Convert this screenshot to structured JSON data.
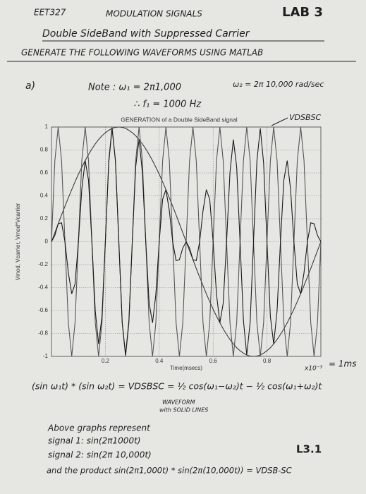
{
  "header": {
    "course": "EET327",
    "topic": "MODULATION SIGNALS",
    "lab": "LAB 3",
    "subtitle": "Double SideBand with Suppressed Carrier",
    "instruction": "GENERATE THE FOLLOWING WAVEFORMS USING MATLAB"
  },
  "notes": {
    "part": "a)",
    "omega1": "Note : ω₁ = 2π1,000",
    "f1": "∴ f₁ = 1000 Hz",
    "omega2": "ω₂ = 2π 10,000 rad/sec",
    "vlabel": "VDSBSC",
    "xscale": "x10⁻³",
    "ms": "= 1ms",
    "equation": "(sin ω₁t) * (sin ω₂t) = VDSBSC = ½ cos(ω₁−ω₂)t − ½ cos(ω₁+ω₂)t",
    "waveform1": "WAVEFORM",
    "waveform2": "with SOLID LINES",
    "above": "Above graphs represent",
    "signal1": "signal 1: sin(2π1000t)",
    "signal2": "signal 2: sin(2π 10,000t)",
    "product": "and the product sin(2π1,000t) * sin(2π(10,000t)) = VDSB-SC",
    "ref": "L3.1"
  },
  "chart_data": {
    "type": "line",
    "title": "GENERATION of a Double SideBand signal",
    "xlabel": "Time(msecs)",
    "ylabel": "Vmod, Vcarrier, Vmod*Vcarrier",
    "x": [
      0,
      0.0125,
      0.025,
      0.0375,
      0.05,
      0.0625,
      0.075,
      0.0875,
      0.1,
      0.1125,
      0.125,
      0.1375,
      0.15,
      0.1625,
      0.175,
      0.1875,
      0.2,
      0.2125,
      0.225,
      0.2375,
      0.25,
      0.2625,
      0.275,
      0.2875,
      0.3,
      0.3125,
      0.325,
      0.3375,
      0.35,
      0.3625,
      0.375,
      0.3875,
      0.4,
      0.4125,
      0.425,
      0.4375,
      0.45,
      0.4625,
      0.475,
      0.4875,
      0.5,
      0.5125,
      0.525,
      0.5375,
      0.55,
      0.5625,
      0.575,
      0.5875,
      0.6,
      0.6125,
      0.625,
      0.6375,
      0.65,
      0.6625,
      0.675,
      0.6875,
      0.7,
      0.7125,
      0.725,
      0.7375,
      0.75,
      0.7625,
      0.775,
      0.7875,
      0.8,
      0.8125,
      0.825,
      0.8375,
      0.85,
      0.8625,
      0.875,
      0.8875,
      0.9,
      0.9125,
      0.925,
      0.9375,
      0.95,
      0.9625,
      0.975,
      0.9875,
      1
    ],
    "series": [
      {
        "color": "#3a3a3a",
        "values": [
          0,
          0.078,
          0.156,
          0.233,
          0.309,
          0.383,
          0.454,
          0.522,
          0.588,
          0.649,
          0.707,
          0.76,
          0.809,
          0.853,
          0.891,
          0.924,
          0.951,
          0.972,
          0.988,
          0.997,
          1,
          0.997,
          0.988,
          0.972,
          0.951,
          0.924,
          0.891,
          0.853,
          0.809,
          0.76,
          0.707,
          0.649,
          0.588,
          0.522,
          0.454,
          0.383,
          0.309,
          0.233,
          0.156,
          0.078,
          0,
          -0.078,
          -0.156,
          -0.233,
          -0.309,
          -0.383,
          -0.454,
          -0.522,
          -0.588,
          -0.649,
          -0.707,
          -0.76,
          -0.809,
          -0.853,
          -0.891,
          -0.924,
          -0.951,
          -0.972,
          -0.988,
          -0.997,
          -1,
          -0.997,
          -0.988,
          -0.972,
          -0.951,
          -0.924,
          -0.891,
          -0.853,
          -0.809,
          -0.76,
          -0.707,
          -0.649,
          -0.588,
          -0.522,
          -0.454,
          -0.383,
          -0.309,
          -0.233,
          -0.156,
          -0.078,
          0
        ]
      },
      {
        "color": "#555555",
        "values": [
          0,
          0.707,
          1,
          0.707,
          0,
          -0.707,
          -1,
          -0.707,
          0,
          0.707,
          1,
          0.707,
          0,
          -0.707,
          -1,
          -0.707,
          0,
          0.707,
          1,
          0.707,
          0,
          -0.707,
          -1,
          -0.707,
          0,
          0.707,
          1,
          0.707,
          0,
          -0.707,
          -1,
          -0.707,
          0,
          0.707,
          1,
          0.707,
          0,
          -0.707,
          -1,
          -0.707,
          0,
          0.707,
          1,
          0.707,
          0,
          -0.707,
          -1,
          -0.707,
          0,
          0.707,
          1,
          0.707,
          0,
          -0.707,
          -1,
          -0.707,
          0,
          0.707,
          1,
          0.707,
          0,
          -0.707,
          -1,
          -0.707,
          0,
          0.707,
          1,
          0.707,
          0,
          -0.707,
          -1,
          -0.707,
          0,
          0.707,
          1,
          0.707,
          0,
          -0.707,
          -1,
          -0.707,
          0
        ]
      },
      {
        "color": "#1a1a1a",
        "values": [
          0,
          0.055,
          0.156,
          0.165,
          0,
          -0.271,
          -0.454,
          -0.369,
          0,
          0.459,
          0.707,
          0.537,
          0,
          -0.603,
          -0.891,
          -0.653,
          0,
          0.687,
          0.988,
          0.705,
          0,
          -0.705,
          -0.988,
          -0.687,
          0,
          0.653,
          0.891,
          0.603,
          0,
          -0.537,
          -0.707,
          -0.459,
          0,
          0.369,
          0.454,
          0.271,
          0,
          -0.165,
          -0.156,
          -0.055,
          0,
          -0.055,
          -0.156,
          -0.165,
          0,
          0.271,
          0.454,
          0.369,
          0,
          -0.459,
          -0.707,
          -0.537,
          0,
          0.603,
          0.891,
          0.653,
          0,
          -0.687,
          -0.988,
          -0.705,
          0,
          0.705,
          0.988,
          0.687,
          0,
          -0.653,
          -0.891,
          -0.603,
          0,
          0.537,
          0.707,
          0.459,
          0,
          -0.369,
          -0.454,
          -0.271,
          0,
          0.165,
          0.156,
          0.055,
          0
        ]
      }
    ],
    "xlim": [
      0,
      1
    ],
    "ylim": [
      -1,
      1
    ],
    "xticks": [
      0.2,
      0.4,
      0.6,
      0.8
    ],
    "yticks": [
      -1,
      -0.8,
      -0.6,
      -0.4,
      -0.2,
      0,
      0.2,
      0.4,
      0.6,
      0.8,
      1
    ],
    "grid": true
  }
}
